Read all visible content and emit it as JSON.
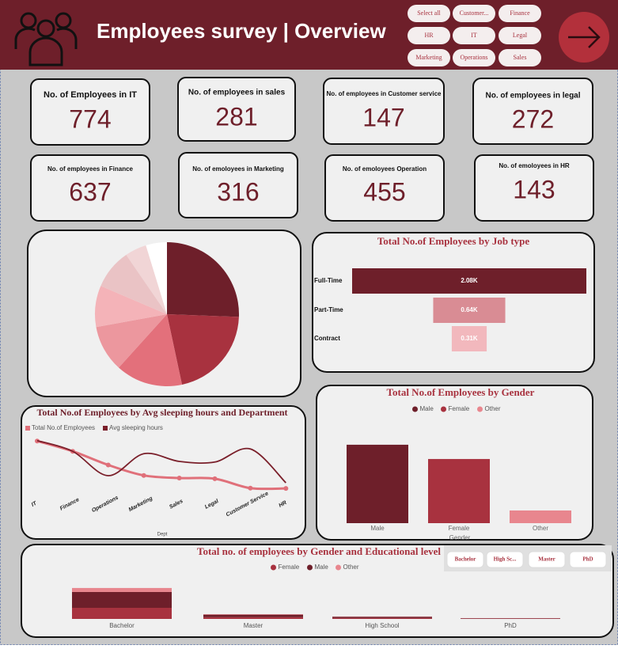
{
  "header": {
    "title": "Employees survey | Overview"
  },
  "filters": [
    "Select all",
    "Customer...",
    "Finance",
    "HR",
    "IT",
    "Legal",
    "Marketing",
    "Operations",
    "Sales"
  ],
  "kpis": [
    {
      "label": "No. of Employees in IT",
      "value": 774
    },
    {
      "label": "No. of employees in sales",
      "value": 281
    },
    {
      "label": "No. of employees in Customer service",
      "value": 147
    },
    {
      "label": "No. of employees in legal",
      "value": 272
    },
    {
      "label": "No. of employees in Finance",
      "value": 637
    },
    {
      "label": "No. of emoloyees in Marketing",
      "value": 316
    },
    {
      "label": "No. of emoloyees Operation",
      "value": 455
    },
    {
      "label": "No. of emoloyees in HR",
      "value": 143
    }
  ],
  "education_filters": [
    "Bachelor",
    "High Sc...",
    "Master",
    "PhD"
  ],
  "chart_data": [
    {
      "type": "pie",
      "values": [
        774,
        637,
        455,
        316,
        281,
        272,
        147,
        143
      ],
      "colors": [
        "#6e1f2a",
        "#a8323f",
        "#e3707b",
        "#ec979e",
        "#f4b3b8",
        "#eac3c5",
        "#f1d5d6",
        "#ffffff"
      ]
    },
    {
      "type": "funnel",
      "title": "Total No.of Employees by Job type",
      "categories": [
        "Full-Time",
        "Part-Time",
        "Contract"
      ],
      "values": [
        2080,
        640,
        310
      ],
      "value_labels": [
        "2.08K",
        "0.64K",
        "0.31K"
      ],
      "colors": [
        "#6e1f2a",
        "#d98c94",
        "#f2b8bd"
      ]
    },
    {
      "type": "line",
      "title": "Total No.of Employees by Avg sleeping hours and Department",
      "categories": [
        "IT",
        "Finance",
        "Operations",
        "Marketing",
        "Sales",
        "Legal",
        "Customer Service",
        "HR"
      ],
      "xlabel": "Dept",
      "ylim": [
        60,
        850
      ],
      "y2lim": [
        6.0,
        7.0
      ],
      "series": [
        {
          "name": "Total No.of Employees",
          "color": "#e0707a",
          "values": [
            774,
            637,
            455,
            316,
            281,
            272,
            147,
            143
          ]
        },
        {
          "name": "Avg sleeping hours",
          "color": "#7a1f2a",
          "axis": "y2",
          "values": [
            6.91,
            6.73,
            6.32,
            6.69,
            6.56,
            6.55,
            6.77,
            6.2
          ]
        }
      ]
    },
    {
      "type": "bar",
      "title": "Total No.of Employees by Gender",
      "categories": [
        "Male",
        "Female",
        "Other"
      ],
      "values": [
        1528,
        1250,
        247
      ],
      "colors": [
        "#6e1f2a",
        "#a8323f",
        "#e8868e"
      ],
      "xlabel": "Gender",
      "ylim": [
        0,
        1650
      ]
    },
    {
      "type": "stacked_bar",
      "title": "Total no. of employees by Gender and Educational level",
      "categories": [
        "Bachelor",
        "Master",
        "High School",
        "PhD"
      ],
      "ylim": [
        0,
        3500
      ],
      "series": [
        {
          "name": "Female",
          "color": "#a8323f",
          "values": [
            860,
            140,
            70,
            25
          ]
        },
        {
          "name": "Male",
          "color": "#6e1f2a",
          "values": [
            1230,
            190,
            100,
            32
          ]
        },
        {
          "name": "Other",
          "color": "#e8868e",
          "values": [
            310,
            40,
            20,
            8
          ]
        }
      ]
    }
  ]
}
